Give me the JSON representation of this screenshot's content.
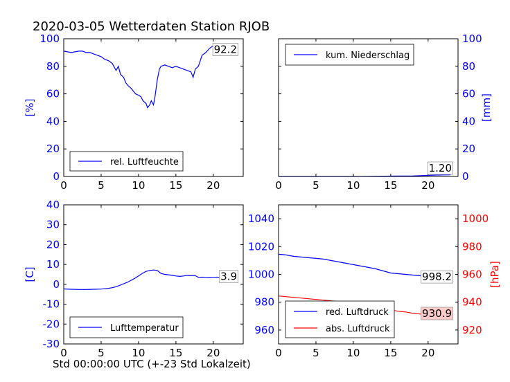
{
  "title": "2020-03-05 Wetterdaten Station RJOB",
  "xlabel": "Std 00:00:00 UTC (+-23 Std Lokalzeit)",
  "colors": {
    "blue": "#0000ff",
    "red": "#ff0000",
    "black": "#000000",
    "label_bg": "#ffcccc"
  },
  "chart_data": [
    {
      "type": "line",
      "panel": "top-left",
      "xlim": [
        0,
        24
      ],
      "xticks": [
        0,
        5,
        10,
        15,
        20
      ],
      "ylim": [
        0,
        100
      ],
      "yticks": [
        0,
        20,
        40,
        60,
        80,
        100
      ],
      "ylabel": "[%]",
      "ylabel_side": "left",
      "legend": "lower-left",
      "last_value_label": "92.2",
      "series": [
        {
          "name": "rel. Luftfeuchte",
          "color": "#0000ff",
          "x": [
            0,
            0.5,
            1,
            1.5,
            2,
            2.5,
            3,
            3.5,
            4,
            4.5,
            5,
            5.5,
            6,
            6.5,
            7,
            7.3,
            7.6,
            8,
            8.3,
            8.6,
            9,
            9.3,
            9.6,
            10,
            10.3,
            10.6,
            11,
            11.2,
            11.5,
            11.7,
            12,
            12.2,
            12.5,
            12.8,
            13,
            13.5,
            14,
            14.5,
            15,
            15.5,
            16,
            16.5,
            17,
            17.3,
            17.6,
            18,
            18.5,
            19,
            19.5,
            20,
            20.5,
            21,
            21.3,
            21.6,
            22,
            22.5,
            23
          ],
          "values": [
            91,
            90.5,
            90,
            90.5,
            91,
            91,
            90,
            90,
            89,
            88,
            87,
            85,
            84,
            82,
            77,
            80,
            74,
            72,
            68,
            66,
            64,
            62,
            60,
            59,
            58,
            55,
            53,
            50,
            52,
            55,
            52,
            58,
            70,
            78,
            80,
            81,
            80,
            79,
            80,
            79,
            78,
            77,
            76,
            72,
            78,
            80,
            88,
            90,
            93,
            95,
            96,
            95,
            90,
            93,
            94,
            93,
            92.2
          ]
        }
      ]
    },
    {
      "type": "line",
      "panel": "top-right",
      "xlim": [
        0,
        24
      ],
      "xticks": [
        0,
        5,
        10,
        15,
        20
      ],
      "ylim": [
        0,
        100
      ],
      "yticks": [
        0,
        20,
        40,
        60,
        80,
        100
      ],
      "ylabel": "[mm]",
      "ylabel_side": "right",
      "legend": "upper-left",
      "last_value_label": "1.20",
      "series": [
        {
          "name": "kum. Niederschlag",
          "color": "#0000ff",
          "x": [
            0,
            2,
            4,
            6,
            8,
            10,
            12,
            14,
            16,
            18,
            19,
            20,
            21,
            22,
            23
          ],
          "values": [
            0,
            0,
            0,
            0,
            0,
            0,
            0.1,
            0.2,
            0.3,
            0.4,
            0.6,
            0.8,
            1.0,
            1.1,
            1.2
          ]
        }
      ]
    },
    {
      "type": "line",
      "panel": "bottom-left",
      "xlim": [
        0,
        24
      ],
      "xticks": [
        0,
        5,
        10,
        15,
        20
      ],
      "ylim": [
        -30,
        40
      ],
      "yticks": [
        -30,
        -20,
        -10,
        0,
        10,
        20,
        30,
        40
      ],
      "ylabel": "[C]",
      "ylabel_side": "left",
      "legend": "lower-left",
      "last_value_label": "3.9",
      "series": [
        {
          "name": "Lufttemperatur",
          "color": "#0000ff",
          "x": [
            0,
            1,
            2,
            3,
            4,
            5,
            5.5,
            6,
            6.5,
            7,
            7.5,
            8,
            8.5,
            9,
            9.5,
            10,
            10.5,
            11,
            11.5,
            12,
            12.5,
            13,
            13.5,
            14,
            14.5,
            15,
            15.5,
            16,
            16.5,
            17,
            17.5,
            18,
            18.5,
            19,
            19.5,
            20,
            20.5,
            21,
            22,
            23
          ],
          "values": [
            -2.3,
            -2.5,
            -2.6,
            -2.6,
            -2.5,
            -2.4,
            -2.2,
            -2,
            -1.7,
            -1.2,
            -0.5,
            0.3,
            1,
            2,
            3,
            4.2,
            5.5,
            6.5,
            7,
            7.2,
            7,
            5.5,
            5,
            4.8,
            4.5,
            4.2,
            4,
            4.2,
            4.5,
            4.3,
            4.5,
            3.5,
            3.6,
            3.5,
            3.4,
            3.5,
            3.6,
            3.5,
            3.8,
            3.9
          ]
        }
      ]
    },
    {
      "type": "line",
      "panel": "bottom-right",
      "xlim": [
        0,
        24
      ],
      "xticks": [
        0,
        5,
        10,
        15,
        20
      ],
      "ylim": [
        950,
        1050
      ],
      "yticks": [
        960,
        980,
        1000,
        1020,
        1040
      ],
      "ylim_right": [
        910,
        1010
      ],
      "yticks_right": [
        920,
        940,
        960,
        980,
        1000
      ],
      "ylabel_right": "[hPa]",
      "legend": "lower-left",
      "last_value_label": "998.2",
      "last_value_label_right": "930.9",
      "series": [
        {
          "name": "red. Luftdruck",
          "color": "#0000ff",
          "axis": "left",
          "x": [
            0,
            1,
            2,
            3,
            4,
            5,
            6,
            7,
            8,
            9,
            10,
            11,
            12,
            13,
            14,
            15,
            16,
            17,
            18,
            19,
            20,
            21,
            22,
            23
          ],
          "values": [
            1014.5,
            1014,
            1013,
            1012.5,
            1012,
            1011.5,
            1011,
            1010,
            1009,
            1008,
            1007,
            1006,
            1005,
            1004,
            1002.5,
            1001,
            1000.5,
            1000,
            999.5,
            999,
            998,
            997.5,
            998,
            998.2
          ]
        },
        {
          "name": "abs. Luftdruck",
          "color": "#ff0000",
          "axis": "right",
          "x": [
            0,
            1,
            2,
            3,
            4,
            5,
            6,
            7,
            8,
            9,
            10,
            11,
            12,
            13,
            14,
            15,
            16,
            17,
            18,
            19,
            20,
            21,
            22,
            23
          ],
          "values": [
            944.5,
            944,
            943.5,
            943,
            942.5,
            942,
            941.5,
            941,
            940.5,
            940,
            939.5,
            939,
            938,
            936.5,
            935.5,
            934.5,
            933.5,
            933,
            932,
            931.5,
            930.5,
            930,
            930.5,
            930.9
          ]
        }
      ]
    }
  ]
}
